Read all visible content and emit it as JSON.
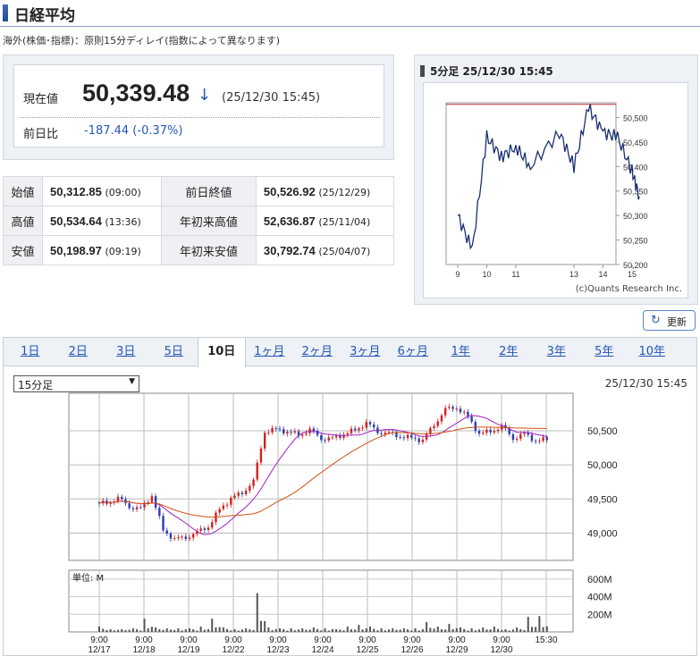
{
  "title": "日経平均",
  "delay_note": "海外(株価･指標)：原則15分ディレイ(指数によって異なります)",
  "current": {
    "label": "現在値",
    "value": "50,339.48",
    "arrow": "↓",
    "time": "(25/12/30 15:45)",
    "change_label": "前日比",
    "change_value": "-187.44 (-0.37%)"
  },
  "ohlc": [
    {
      "label": "始値",
      "value": "50,312.85",
      "time": "(09:00)",
      "label2": "前日終値",
      "value2": "50,526.92",
      "time2": "(25/12/29)"
    },
    {
      "label": "高値",
      "value": "50,534.64",
      "time": "(13:36)",
      "label2": "年初来高値",
      "value2": "52,636.87",
      "time2": "(25/11/04)"
    },
    {
      "label": "安値",
      "value": "50,198.97",
      "time": "(09:19)",
      "label2": "年初来安値",
      "value2": "30,792.74",
      "time2": "(25/04/07)"
    }
  ],
  "mini_chart": {
    "header": "5分足 25/12/30 15:45",
    "credit": "(c)Quants Research Inc."
  },
  "refresh_label": "更新",
  "tabs": [
    "1日",
    "2日",
    "3日",
    "5日",
    "10日",
    "1ヶ月",
    "2ヶ月",
    "3ヶ月",
    "6ヶ月",
    "1年",
    "2年",
    "3年",
    "5年",
    "10年"
  ],
  "active_tab": "10日",
  "period": {
    "selected": "15分足"
  },
  "chart_time": "25/12/30 15:45",
  "colors": {
    "up": "#d42020",
    "down": "#2a3fb0",
    "ma_short": "#a020c0",
    "ma_long": "#d05010",
    "line": "#1a2f70",
    "accent": "#2457b8"
  },
  "chart_data": [
    {
      "type": "line",
      "x": [
        "9",
        "9.5",
        "10",
        "10.5",
        "11",
        "11.5",
        "12.5",
        "13",
        "13.5",
        "14",
        "14.5",
        "15",
        "15.25"
      ],
      "values": [
        50300,
        50230,
        50460,
        50420,
        50440,
        50400,
        50470,
        50400,
        50520,
        50470,
        50460,
        50390,
        50339
      ],
      "y_ticks": [
        "50,500",
        "50,450",
        "50,400",
        "50,350",
        "50,300",
        "50,250",
        "50,200"
      ],
      "x_ticks": [
        "9",
        "10",
        "11",
        "13",
        "14",
        "15"
      ],
      "reference_line": 50526.92,
      "ylim": [
        50200,
        50530
      ]
    },
    {
      "type": "candlestick",
      "x_ticks": [
        {
          "time": "9:00",
          "date": "12/17"
        },
        {
          "time": "9:00",
          "date": "12/18"
        },
        {
          "time": "9:00",
          "date": "12/19"
        },
        {
          "time": "9:00",
          "date": "12/22"
        },
        {
          "time": "9:00",
          "date": "12/23"
        },
        {
          "time": "9:00",
          "date": "12/24"
        },
        {
          "time": "9:00",
          "date": "12/25"
        },
        {
          "time": "9:00",
          "date": "12/26"
        },
        {
          "time": "9:00",
          "date": "12/29"
        },
        {
          "time": "9:00",
          "date": "12/30"
        },
        {
          "time": "15:30",
          "date": ""
        }
      ],
      "y_ticks": [
        "50,500",
        "50,000",
        "49,500",
        "49,000"
      ],
      "ylim": [
        48600,
        51050
      ],
      "closes": [
        49450,
        49500,
        49400,
        49350,
        49550,
        49050,
        48900,
        48950,
        49000,
        49100,
        49350,
        49500,
        49600,
        49750,
        50500,
        50520,
        50480,
        50450,
        50500,
        50400,
        50380,
        50450,
        50520,
        50600,
        50500,
        50450,
        50420,
        50400,
        50350,
        50600,
        50800,
        50850,
        50700,
        50450,
        50500,
        50550,
        50400,
        50450,
        50350,
        50380
      ],
      "volume": {
        "unit_label": "単位: M",
        "ticks": [
          "600M",
          "400M",
          "200M"
        ],
        "ylim": [
          0,
          700
        ],
        "values": [
          60,
          30,
          30,
          40,
          150,
          50,
          40,
          40,
          40,
          60,
          150,
          50,
          30,
          40,
          440,
          50,
          40,
          40,
          40,
          50,
          40,
          30,
          60,
          80,
          60,
          40,
          40,
          40,
          40,
          110,
          60,
          90,
          50,
          40,
          50,
          60,
          30,
          50,
          170,
          180
        ]
      }
    }
  ]
}
